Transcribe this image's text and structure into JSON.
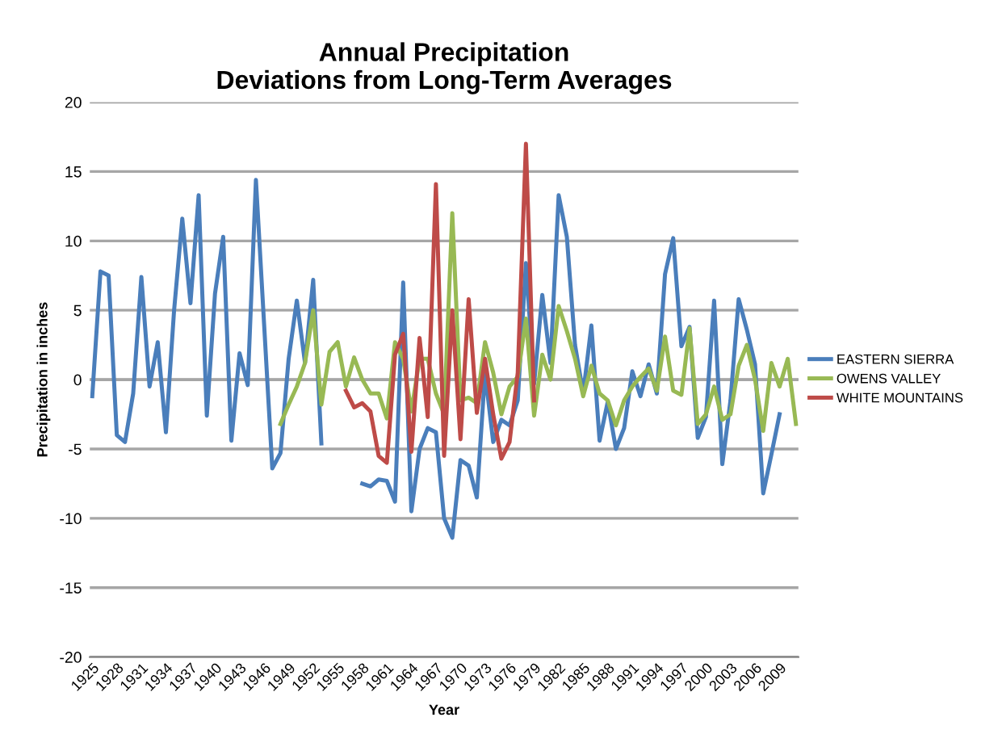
{
  "chart_data": {
    "type": "line",
    "title": "Annual Precipitation\nDeviations from Long-Term Averages",
    "xlabel": "Year",
    "ylabel": "Precipitation in inches",
    "categories": [
      "1925",
      null,
      null,
      "1928",
      null,
      null,
      "1931",
      null,
      null,
      "1934",
      null,
      null,
      "1937",
      null,
      null,
      "1940",
      null,
      null,
      "1943",
      null,
      null,
      "1946",
      null,
      null,
      "1949",
      null,
      null,
      "1952",
      null,
      null,
      "1955",
      null,
      null,
      "1958",
      null,
      null,
      "1961",
      null,
      null,
      "1964",
      null,
      null,
      "1967",
      null,
      null,
      "1970",
      null,
      null,
      "1973",
      null,
      null,
      "1976",
      null,
      null,
      "1979",
      null,
      null,
      "1982",
      null,
      null,
      "1985",
      null,
      null,
      "1988",
      null,
      null,
      "1991",
      null,
      null,
      "1994",
      null,
      null,
      "1997",
      null,
      null,
      "2000",
      null,
      null,
      "2003",
      null,
      null,
      "2006",
      null,
      null,
      "2009",
      null,
      null
    ],
    "series": [
      {
        "name": "EASTERN SIERRA",
        "color": "#4a7ebb",
        "values": [
          -1.2,
          7.8,
          7.5,
          -4.0,
          -4.5,
          -1.0,
          7.4,
          -0.5,
          2.7,
          -3.8,
          5.0,
          11.6,
          5.5,
          13.3,
          -2.6,
          6.2,
          10.3,
          -4.4,
          1.9,
          -0.4,
          14.4,
          4.0,
          -6.4,
          -5.3,
          1.5,
          5.7,
          1.2,
          7.2,
          -4.6,
          null,
          null,
          null,
          null,
          -7.5,
          -7.7,
          -7.2,
          -7.3,
          -8.8,
          7.0,
          -9.5,
          -5.0,
          -3.5,
          -3.8,
          -10.0,
          -11.4,
          -5.8,
          -6.2,
          -8.5,
          0.5,
          -4.5,
          -2.9,
          -3.3,
          -1.5,
          8.4,
          -0.3,
          6.1,
          1.2,
          13.3,
          10.3,
          2.5,
          -1.0,
          3.9,
          -4.4,
          -1.6,
          -5.0,
          -3.5,
          0.6,
          -1.2,
          1.1,
          -1.0,
          7.6,
          10.2,
          2.4,
          3.8,
          -4.2,
          -2.7,
          5.7,
          -6.1,
          -1.5,
          5.8,
          3.6,
          1.1,
          -8.2,
          -5.4,
          -2.5,
          null,
          null
        ]
      },
      {
        "name": "OWENS VALLEY",
        "color": "#98b954",
        "values": [
          null,
          null,
          null,
          null,
          null,
          null,
          null,
          null,
          null,
          null,
          null,
          null,
          null,
          null,
          null,
          null,
          null,
          null,
          null,
          null,
          null,
          null,
          null,
          -3.2,
          -1.8,
          -0.5,
          1.2,
          5.0,
          -1.8,
          2.0,
          2.7,
          -0.5,
          1.6,
          0.0,
          -1.0,
          -1.0,
          -2.8,
          2.7,
          1.5,
          -2.3,
          1.5,
          1.5,
          -1.0,
          -2.5,
          12.0,
          -1.5,
          -1.3,
          -1.7,
          2.7,
          0.5,
          -2.5,
          -0.5,
          0.2,
          4.4,
          -2.6,
          1.8,
          0.0,
          5.3,
          3.5,
          1.5,
          -1.2,
          1.0,
          -1.0,
          -1.5,
          -3.3,
          -1.5,
          -0.5,
          0.2,
          0.8,
          -0.8,
          3.1,
          -0.8,
          -1.1,
          3.7,
          -3.2,
          -2.5,
          -0.5,
          -2.9,
          -2.5,
          1.0,
          2.5,
          0.0,
          -3.7,
          1.2,
          -0.5,
          1.5,
          -3.2
        ]
      },
      {
        "name": "WHITE MOUNTAINS",
        "color": "#be4b48",
        "values": [
          null,
          null,
          null,
          null,
          null,
          null,
          null,
          null,
          null,
          null,
          null,
          null,
          null,
          null,
          null,
          null,
          null,
          null,
          null,
          null,
          null,
          null,
          null,
          null,
          null,
          null,
          null,
          null,
          null,
          null,
          null,
          -0.8,
          -2.0,
          -1.7,
          -2.3,
          -5.5,
          -6.0,
          1.8,
          3.3,
          -5.2,
          3.0,
          -2.7,
          14.1,
          -5.5,
          5.0,
          -4.3,
          5.8,
          -2.4,
          1.5,
          -2.5,
          -5.7,
          -4.5,
          0.5,
          17.0,
          -1.5,
          null,
          null,
          null,
          null,
          null,
          null,
          null,
          null,
          null,
          null,
          null,
          null,
          null,
          null,
          null,
          null,
          null,
          null,
          null,
          null,
          null,
          null,
          null,
          null,
          null,
          null,
          null,
          null,
          null,
          null,
          null,
          null
        ]
      }
    ],
    "ylim": [
      -20,
      20
    ],
    "yticks": [
      -20,
      -15,
      -10,
      -5,
      0,
      5,
      10,
      15,
      20
    ],
    "grid": "y",
    "legend": "right"
  }
}
